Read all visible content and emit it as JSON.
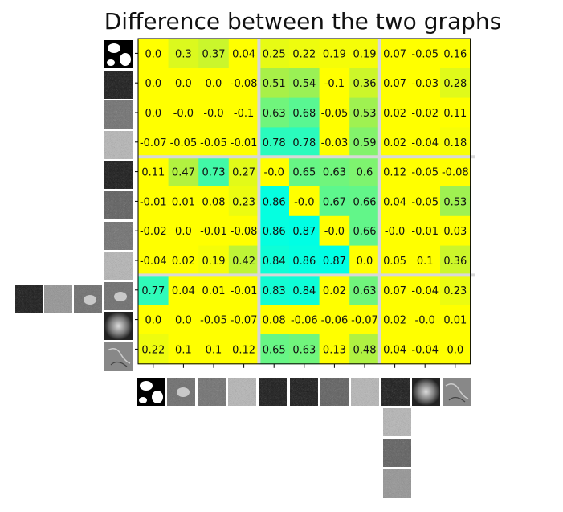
{
  "chart_data": {
    "type": "heatmap",
    "title": "Difference between the two graphs",
    "xlabel": "",
    "ylabel": "",
    "values": [
      [
        0.0,
        0.3,
        0.37,
        0.04,
        0.25,
        0.22,
        0.19,
        0.19,
        0.07,
        -0.05,
        0.16
      ],
      [
        0.0,
        0.0,
        0.0,
        -0.08,
        0.51,
        0.54,
        -0.1,
        0.36,
        0.07,
        -0.03,
        0.28
      ],
      [
        0.0,
        -0.0,
        -0.0,
        -0.1,
        0.63,
        0.68,
        -0.05,
        0.53,
        0.02,
        -0.02,
        0.11
      ],
      [
        -0.07,
        -0.05,
        -0.05,
        -0.01,
        0.78,
        0.78,
        -0.03,
        0.59,
        0.02,
        -0.04,
        0.18
      ],
      [
        0.11,
        0.47,
        0.73,
        0.27,
        -0.0,
        0.65,
        0.63,
        0.6,
        0.12,
        -0.05,
        -0.08
      ],
      [
        -0.01,
        0.01,
        0.08,
        0.23,
        0.86,
        -0.0,
        0.67,
        0.66,
        0.04,
        -0.05,
        0.53
      ],
      [
        -0.02,
        0.0,
        -0.01,
        -0.08,
        0.86,
        0.87,
        -0.0,
        0.66,
        -0.0,
        -0.01,
        0.03
      ],
      [
        -0.04,
        0.02,
        0.19,
        0.42,
        0.84,
        0.86,
        0.87,
        0.0,
        0.05,
        0.1,
        0.36
      ],
      [
        0.77,
        0.04,
        0.01,
        -0.01,
        0.83,
        0.84,
        0.02,
        0.63,
        0.07,
        -0.04,
        0.23
      ],
      [
        0.0,
        0.0,
        -0.05,
        -0.07,
        0.08,
        -0.06,
        -0.06,
        -0.07,
        0.02,
        -0.0,
        0.01
      ],
      [
        0.22,
        0.1,
        0.1,
        0.12,
        0.65,
        0.63,
        0.13,
        0.48,
        0.04,
        -0.04,
        0.0
      ]
    ],
    "labels": [
      [
        "0.0",
        "0.3",
        "0.37",
        "0.04",
        "0.25",
        "0.22",
        "0.19",
        "0.19",
        "0.07",
        "-0.05",
        "0.16"
      ],
      [
        "0.0",
        "0.0",
        "0.0",
        "-0.08",
        "0.51",
        "0.54",
        "-0.1",
        "0.36",
        "0.07",
        "-0.03",
        "0.28"
      ],
      [
        "0.0",
        "-0.0",
        "-0.0",
        "-0.1",
        "0.63",
        "0.68",
        "-0.05",
        "0.53",
        "0.02",
        "-0.02",
        "0.11"
      ],
      [
        "-0.07",
        "-0.05",
        "-0.05",
        "-0.01",
        "0.78",
        "0.78",
        "-0.03",
        "0.59",
        "0.02",
        "-0.04",
        "0.18"
      ],
      [
        "0.11",
        "0.47",
        "0.73",
        "0.27",
        "-0.0",
        "0.65",
        "0.63",
        "0.6",
        "0.12",
        "-0.05",
        "-0.08"
      ],
      [
        "-0.01",
        "0.01",
        "0.08",
        "0.23",
        "0.86",
        "-0.0",
        "0.67",
        "0.66",
        "0.04",
        "-0.05",
        "0.53"
      ],
      [
        "-0.02",
        "0.0",
        "-0.01",
        "-0.08",
        "0.86",
        "0.87",
        "-0.0",
        "0.66",
        "-0.0",
        "-0.01",
        "0.03"
      ],
      [
        "-0.04",
        "0.02",
        "0.19",
        "0.42",
        "0.84",
        "0.86",
        "0.87",
        "0.0",
        "0.05",
        "0.1",
        "0.36"
      ],
      [
        "0.77",
        "0.04",
        "0.01",
        "-0.01",
        "0.83",
        "0.84",
        "0.02",
        "0.63",
        "0.07",
        "-0.04",
        "0.23"
      ],
      [
        "0.0",
        "0.0",
        "-0.05",
        "-0.07",
        "0.08",
        "-0.06",
        "-0.06",
        "-0.07",
        "0.02",
        "-0.0",
        "0.01"
      ],
      [
        "0.22",
        "0.1",
        "0.1",
        "0.12",
        "0.65",
        "0.63",
        "0.13",
        "0.48",
        "0.04",
        "-0.04",
        "0.0"
      ]
    ],
    "colormap": {
      "low": "#ffff00",
      "mid": "#a8f048",
      "high": "#00ffe4"
    },
    "group_boundaries_rows": [
      4,
      8
    ],
    "group_boundaries_cols": [
      4,
      8
    ],
    "grid": false,
    "legend": "none",
    "tick_labels": "image thumbnails"
  }
}
